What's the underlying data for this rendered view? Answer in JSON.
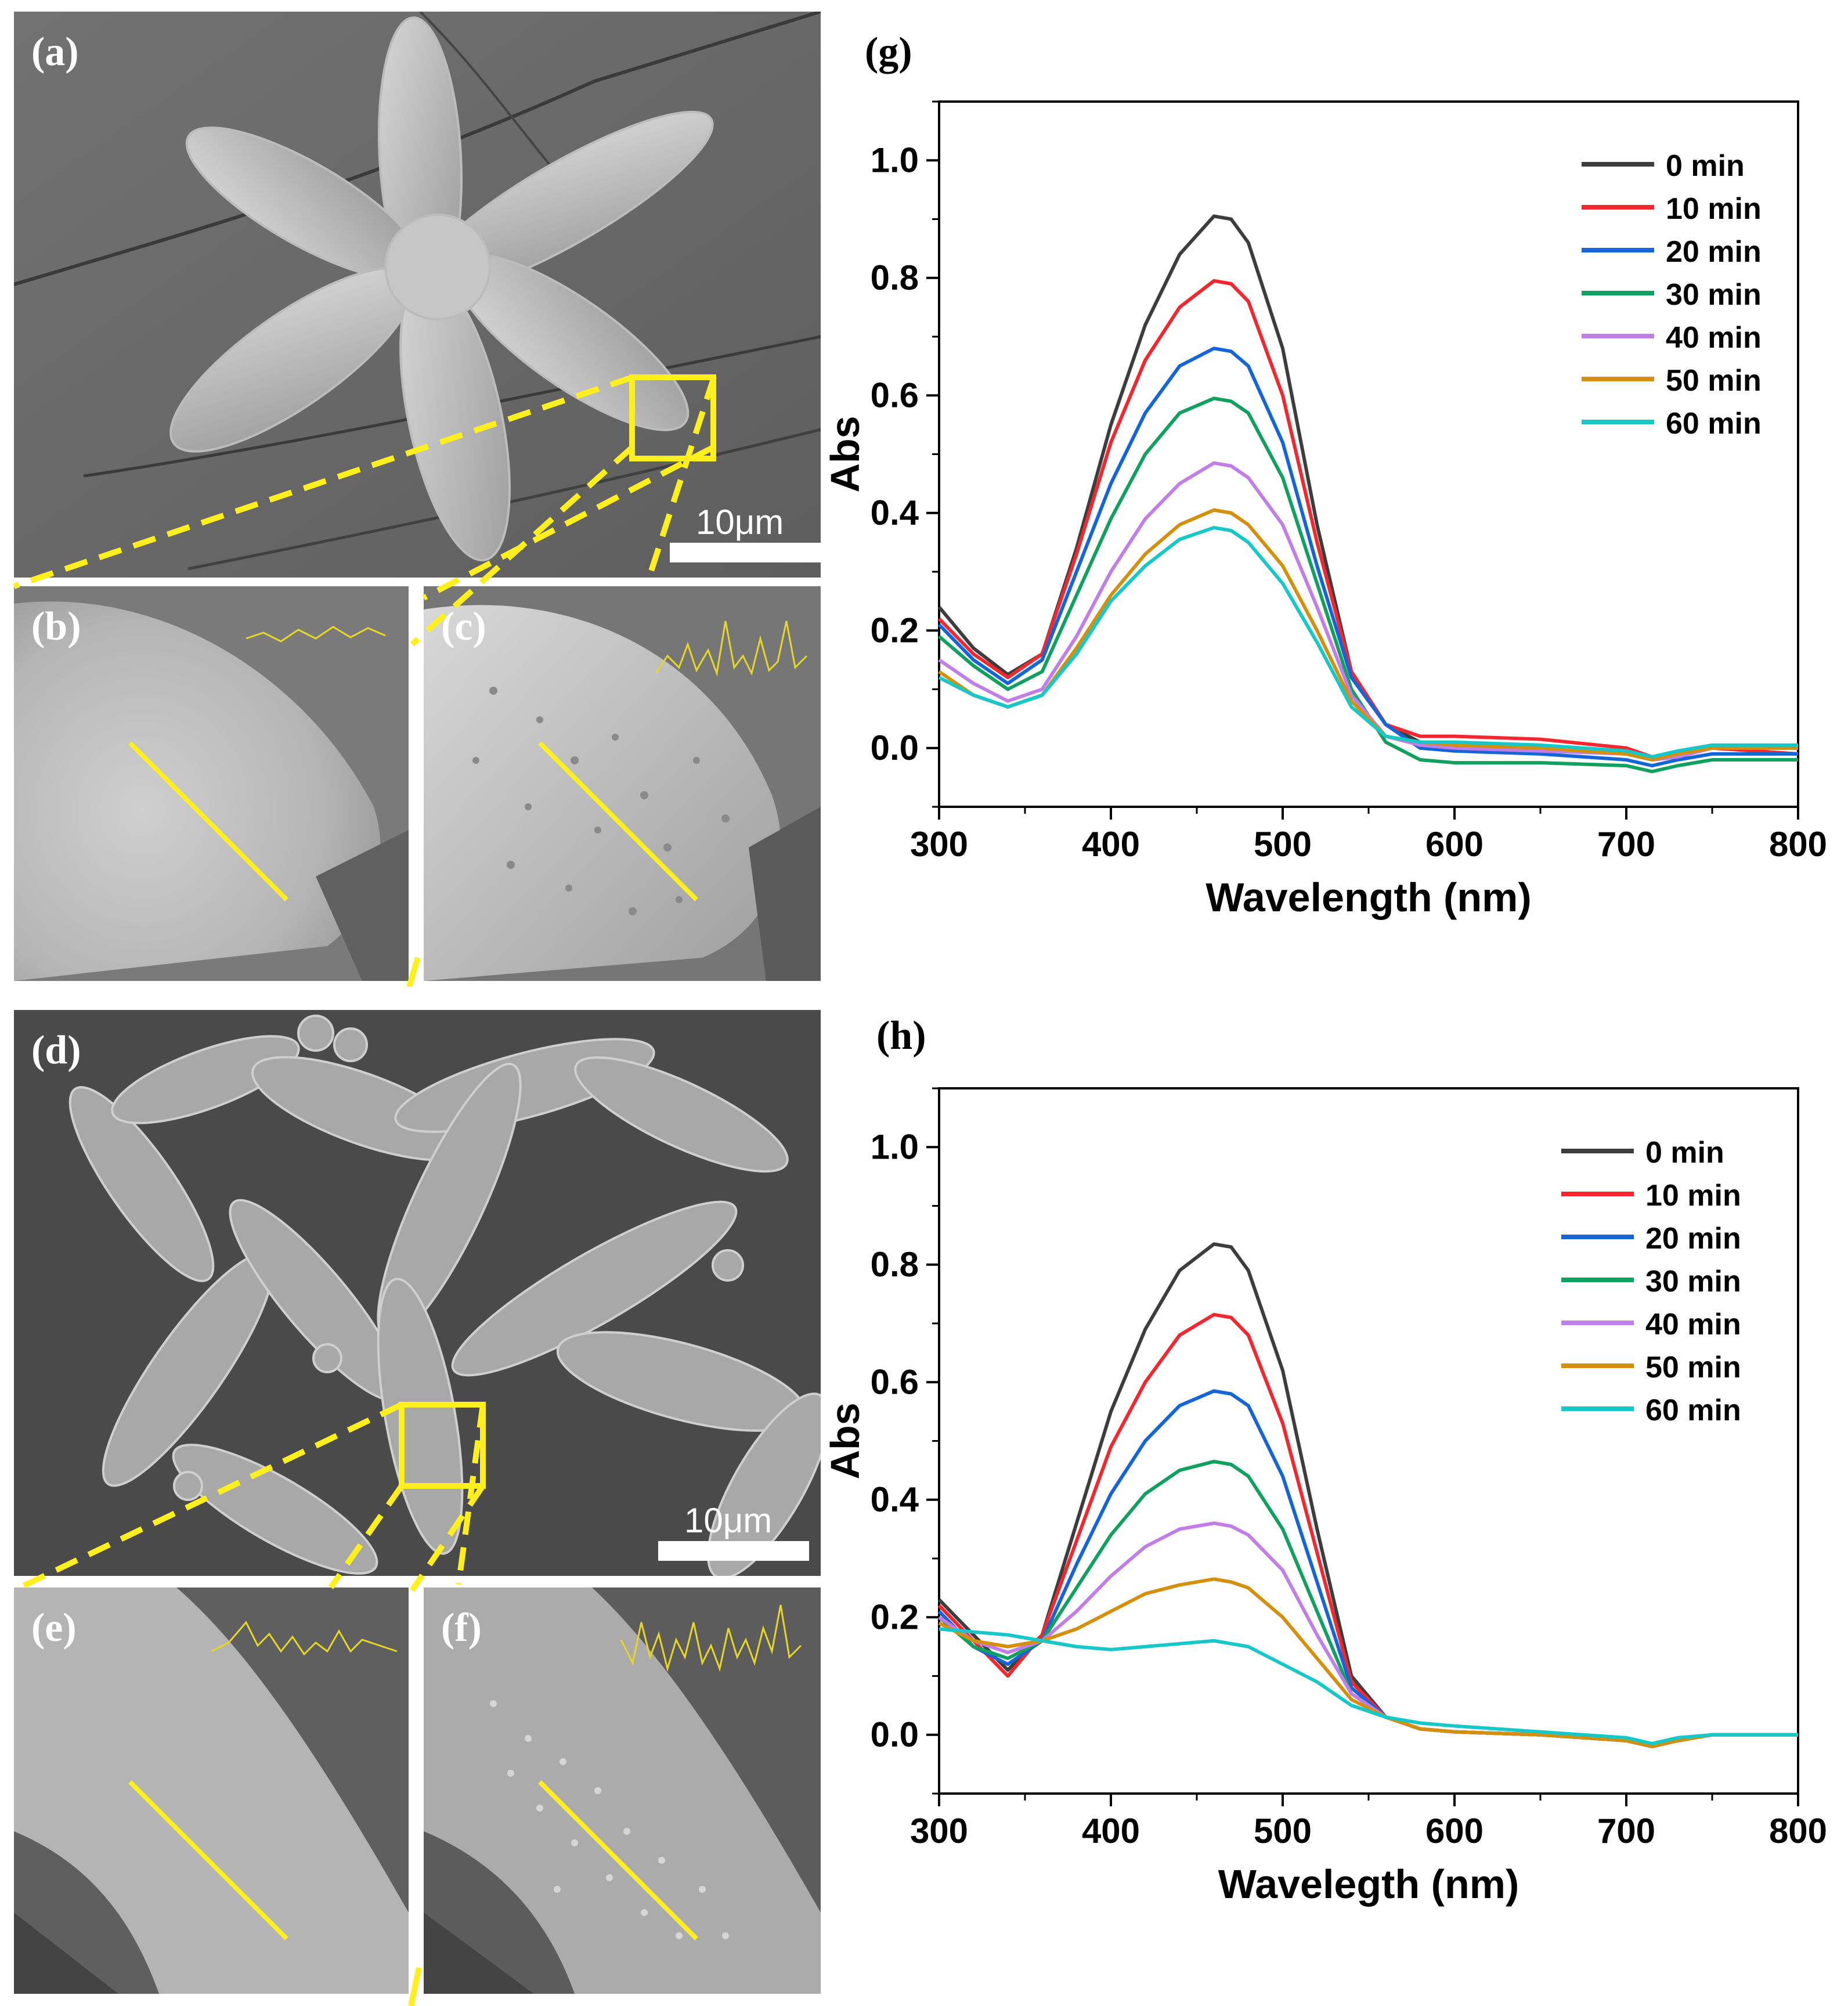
{
  "figure": {
    "panels": {
      "a": "(a)",
      "b": "(b)",
      "c": "(c)",
      "d": "(d)",
      "e": "(e)",
      "f": "(f)",
      "g": "(g)",
      "h": "(h)"
    },
    "scale_bar_a": "10μm",
    "scale_bar_d": "10μm",
    "colors": {
      "highlight": "#ffef1f",
      "series": [
        "#3d3d3d",
        "#f2272f",
        "#1565d8",
        "#12a060",
        "#c27ee8",
        "#d4900c",
        "#17c7c9"
      ]
    }
  },
  "chart_data": [
    {
      "type": "line",
      "xlabel": "Wavelength (nm)",
      "ylabel": "Abs",
      "xlim": [
        300,
        800
      ],
      "ylim": [
        -0.1,
        1.1
      ],
      "xticks": [
        "300",
        "400",
        "500",
        "600",
        "700",
        "800"
      ],
      "yticks": [
        "0.0",
        "0.2",
        "0.4",
        "0.6",
        "0.8",
        "1.0"
      ],
      "legend_position": "top-right",
      "series": [
        {
          "name": "0 min",
          "color": "#3d3d3d",
          "x": [
            300,
            320,
            340,
            360,
            380,
            400,
            420,
            440,
            460,
            470,
            480,
            500,
            520,
            540,
            560,
            580,
            600,
            650,
            700,
            715,
            730,
            750,
            800
          ],
          "y": [
            0.24,
            0.17,
            0.125,
            0.16,
            0.34,
            0.55,
            0.72,
            0.84,
            0.905,
            0.9,
            0.86,
            0.68,
            0.38,
            0.13,
            0.04,
            0.01,
            0.005,
            0.0,
            -0.01,
            -0.02,
            -0.015,
            0.0,
            0.0
          ]
        },
        {
          "name": "10 min",
          "color": "#f2272f",
          "x": [
            300,
            320,
            340,
            360,
            380,
            400,
            420,
            440,
            460,
            470,
            480,
            500,
            520,
            540,
            560,
            580,
            600,
            650,
            700,
            715,
            730,
            750,
            800
          ],
          "y": [
            0.22,
            0.16,
            0.12,
            0.16,
            0.33,
            0.52,
            0.66,
            0.75,
            0.795,
            0.79,
            0.76,
            0.6,
            0.35,
            0.13,
            0.04,
            0.02,
            0.02,
            0.015,
            0.0,
            -0.015,
            -0.01,
            0.0,
            -0.01
          ]
        },
        {
          "name": "20 min",
          "color": "#1565d8",
          "x": [
            300,
            320,
            340,
            360,
            380,
            400,
            420,
            440,
            460,
            470,
            480,
            500,
            520,
            540,
            560,
            580,
            600,
            650,
            700,
            715,
            730,
            750,
            800
          ],
          "y": [
            0.21,
            0.15,
            0.11,
            0.15,
            0.3,
            0.45,
            0.57,
            0.65,
            0.68,
            0.675,
            0.65,
            0.52,
            0.31,
            0.12,
            0.04,
            0.0,
            -0.005,
            -0.01,
            -0.02,
            -0.03,
            -0.02,
            -0.01,
            -0.01
          ]
        },
        {
          "name": "30 min",
          "color": "#12a060",
          "x": [
            300,
            320,
            340,
            360,
            380,
            400,
            420,
            440,
            460,
            470,
            480,
            500,
            520,
            540,
            560,
            580,
            600,
            650,
            700,
            715,
            730,
            750,
            800
          ],
          "y": [
            0.19,
            0.14,
            0.1,
            0.13,
            0.26,
            0.39,
            0.5,
            0.57,
            0.595,
            0.59,
            0.57,
            0.46,
            0.28,
            0.1,
            0.01,
            -0.02,
            -0.025,
            -0.025,
            -0.03,
            -0.04,
            -0.03,
            -0.02,
            -0.02
          ]
        },
        {
          "name": "40 min",
          "color": "#c27ee8",
          "x": [
            300,
            320,
            340,
            360,
            380,
            400,
            420,
            440,
            460,
            470,
            480,
            500,
            520,
            540,
            560,
            580,
            600,
            650,
            700,
            715,
            730,
            750,
            800
          ],
          "y": [
            0.15,
            0.11,
            0.08,
            0.1,
            0.19,
            0.3,
            0.39,
            0.45,
            0.485,
            0.48,
            0.46,
            0.38,
            0.24,
            0.09,
            0.02,
            0.005,
            0.0,
            -0.005,
            -0.01,
            -0.02,
            -0.015,
            0.0,
            0.0
          ]
        },
        {
          "name": "50 min",
          "color": "#d4900c",
          "x": [
            300,
            320,
            340,
            360,
            380,
            400,
            420,
            440,
            460,
            470,
            480,
            500,
            520,
            540,
            560,
            580,
            600,
            650,
            700,
            715,
            730,
            750,
            800
          ],
          "y": [
            0.13,
            0.09,
            0.07,
            0.09,
            0.17,
            0.26,
            0.33,
            0.38,
            0.405,
            0.4,
            0.38,
            0.31,
            0.2,
            0.08,
            0.02,
            0.01,
            0.005,
            0.0,
            -0.01,
            -0.02,
            -0.01,
            0.0,
            0.0
          ]
        },
        {
          "name": "60 min",
          "color": "#17c7c9",
          "x": [
            300,
            320,
            340,
            360,
            380,
            400,
            420,
            440,
            460,
            470,
            480,
            500,
            520,
            540,
            560,
            580,
            600,
            650,
            700,
            715,
            730,
            750,
            800
          ],
          "y": [
            0.12,
            0.09,
            0.07,
            0.09,
            0.16,
            0.25,
            0.31,
            0.355,
            0.375,
            0.37,
            0.35,
            0.28,
            0.18,
            0.07,
            0.02,
            0.01,
            0.01,
            0.005,
            -0.005,
            -0.015,
            -0.005,
            0.005,
            0.005
          ]
        }
      ]
    },
    {
      "type": "line",
      "xlabel": "Wavelegth (nm)",
      "ylabel": "Abs",
      "xlim": [
        300,
        800
      ],
      "ylim": [
        -0.1,
        1.1
      ],
      "xticks": [
        "300",
        "400",
        "500",
        "600",
        "700",
        "800"
      ],
      "yticks": [
        "0.0",
        "0.2",
        "0.4",
        "0.6",
        "0.8",
        "1.0"
      ],
      "legend_position": "top-right",
      "series": [
        {
          "name": "0 min",
          "color": "#3d3d3d",
          "x": [
            300,
            320,
            340,
            360,
            380,
            400,
            420,
            440,
            460,
            470,
            480,
            500,
            520,
            540,
            560,
            580,
            600,
            650,
            700,
            715,
            730,
            750,
            800
          ],
          "y": [
            0.23,
            0.17,
            0.11,
            0.17,
            0.36,
            0.55,
            0.69,
            0.79,
            0.835,
            0.83,
            0.79,
            0.62,
            0.35,
            0.1,
            0.03,
            0.01,
            0.005,
            0.0,
            -0.01,
            -0.02,
            -0.01,
            0.0,
            0.0
          ]
        },
        {
          "name": "10 min",
          "color": "#f2272f",
          "x": [
            300,
            320,
            340,
            360,
            380,
            400,
            420,
            440,
            460,
            470,
            480,
            500,
            520,
            540,
            560,
            580,
            600,
            650,
            700,
            715,
            730,
            750,
            800
          ],
          "y": [
            0.22,
            0.16,
            0.1,
            0.17,
            0.33,
            0.49,
            0.6,
            0.68,
            0.715,
            0.71,
            0.68,
            0.53,
            0.31,
            0.09,
            0.03,
            0.01,
            0.005,
            0.0,
            -0.01,
            -0.02,
            -0.01,
            0.0,
            0.0
          ]
        },
        {
          "name": "20 min",
          "color": "#1565d8",
          "x": [
            300,
            320,
            340,
            360,
            380,
            400,
            420,
            440,
            460,
            470,
            480,
            500,
            520,
            540,
            560,
            580,
            600,
            650,
            700,
            715,
            730,
            750,
            800
          ],
          "y": [
            0.21,
            0.15,
            0.12,
            0.16,
            0.29,
            0.41,
            0.5,
            0.56,
            0.585,
            0.58,
            0.56,
            0.44,
            0.26,
            0.08,
            0.03,
            0.01,
            0.005,
            0.0,
            -0.01,
            -0.02,
            -0.01,
            0.0,
            0.0
          ]
        },
        {
          "name": "30 min",
          "color": "#12a060",
          "x": [
            300,
            320,
            340,
            360,
            380,
            400,
            420,
            440,
            460,
            470,
            480,
            500,
            520,
            540,
            560,
            580,
            600,
            650,
            700,
            715,
            730,
            750,
            800
          ],
          "y": [
            0.2,
            0.15,
            0.13,
            0.16,
            0.25,
            0.34,
            0.41,
            0.45,
            0.465,
            0.46,
            0.44,
            0.35,
            0.21,
            0.07,
            0.03,
            0.01,
            0.005,
            0.0,
            -0.01,
            -0.02,
            -0.01,
            0.0,
            0.0
          ]
        },
        {
          "name": "40 min",
          "color": "#c27ee8",
          "x": [
            300,
            320,
            340,
            360,
            380,
            400,
            420,
            440,
            460,
            470,
            480,
            500,
            520,
            540,
            560,
            580,
            600,
            650,
            700,
            715,
            730,
            750,
            800
          ],
          "y": [
            0.2,
            0.16,
            0.14,
            0.16,
            0.21,
            0.27,
            0.32,
            0.35,
            0.36,
            0.355,
            0.34,
            0.28,
            0.17,
            0.07,
            0.03,
            0.01,
            0.005,
            0.0,
            -0.01,
            -0.02,
            -0.01,
            0.0,
            0.0
          ]
        },
        {
          "name": "50 min",
          "color": "#d4900c",
          "x": [
            300,
            320,
            340,
            360,
            380,
            400,
            420,
            440,
            460,
            470,
            480,
            500,
            520,
            540,
            560,
            580,
            600,
            650,
            700,
            715,
            730,
            750,
            800
          ],
          "y": [
            0.19,
            0.16,
            0.15,
            0.16,
            0.18,
            0.21,
            0.24,
            0.255,
            0.265,
            0.26,
            0.25,
            0.2,
            0.13,
            0.06,
            0.03,
            0.01,
            0.005,
            0.0,
            -0.01,
            -0.02,
            -0.01,
            0.0,
            0.0
          ]
        },
        {
          "name": "60 min",
          "color": "#17c7c9",
          "x": [
            300,
            320,
            340,
            360,
            380,
            400,
            420,
            440,
            460,
            470,
            480,
            500,
            520,
            540,
            560,
            580,
            600,
            650,
            700,
            715,
            730,
            750,
            800
          ],
          "y": [
            0.18,
            0.175,
            0.17,
            0.16,
            0.15,
            0.145,
            0.15,
            0.155,
            0.16,
            0.155,
            0.15,
            0.12,
            0.09,
            0.05,
            0.03,
            0.02,
            0.015,
            0.005,
            -0.005,
            -0.015,
            -0.005,
            0.0,
            0.0
          ]
        }
      ]
    }
  ]
}
